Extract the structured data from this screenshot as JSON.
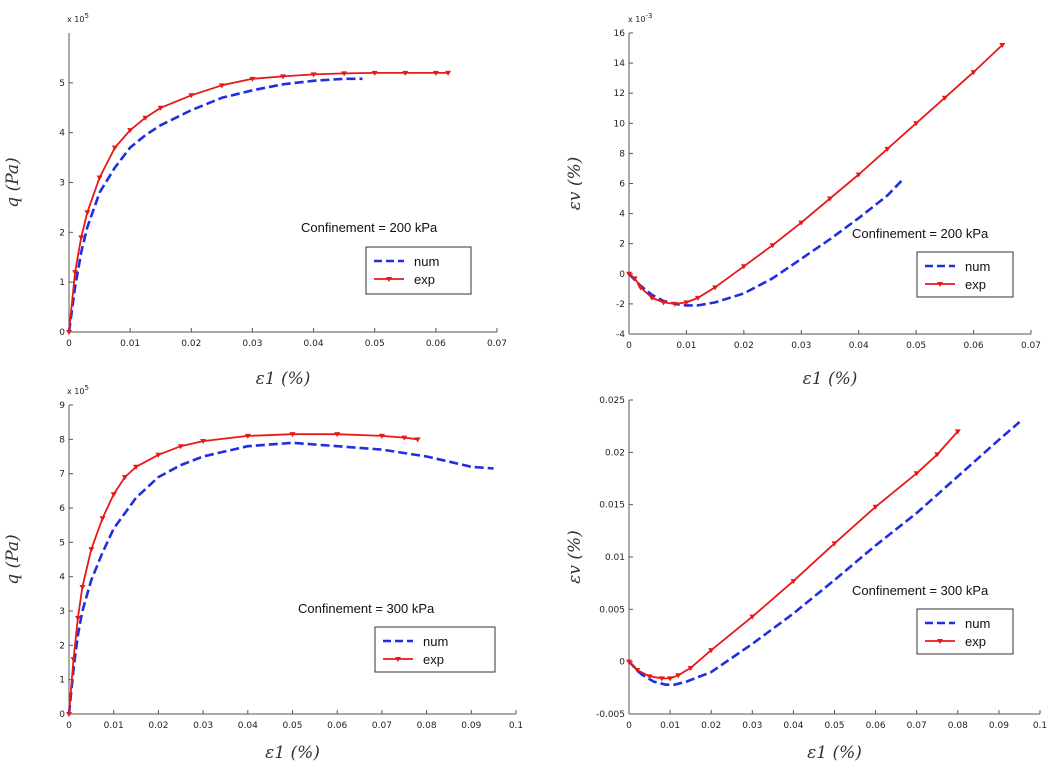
{
  "chart_data": [
    {
      "type": "line",
      "id": "p1",
      "xlabel": "ε1 (%)",
      "ylabel": "q (Pa)",
      "y_multiplier": "x 10^5",
      "xlim": [
        0,
        0.07
      ],
      "ylim": [
        0,
        6
      ],
      "xticks": [
        "0",
        "0.01",
        "0.02",
        "0.03",
        "0.04",
        "0.05",
        "0.06",
        "0.07"
      ],
      "yticks": [
        "0",
        "1",
        "2",
        "3",
        "4",
        "5"
      ],
      "annotation": "Confinement = 200 kPa",
      "legend": {
        "position": "right",
        "entries": [
          "num",
          "exp"
        ]
      },
      "series": [
        {
          "name": "num",
          "color": "#1f2fe0",
          "style": "dashed",
          "x": [
            0,
            0.001,
            0.002,
            0.003,
            0.005,
            0.0075,
            0.01,
            0.0125,
            0.015,
            0.02,
            0.025,
            0.03,
            0.035,
            0.04,
            0.045,
            0.048
          ],
          "y": [
            0,
            0.9,
            1.6,
            2.1,
            2.8,
            3.3,
            3.7,
            3.95,
            4.15,
            4.45,
            4.7,
            4.85,
            4.97,
            5.04,
            5.08,
            5.08
          ]
        },
        {
          "name": "exp",
          "color": "#e81818",
          "style": "marker",
          "x": [
            0,
            0.001,
            0.002,
            0.003,
            0.005,
            0.0075,
            0.01,
            0.0125,
            0.015,
            0.02,
            0.025,
            0.03,
            0.035,
            0.04,
            0.045,
            0.05,
            0.055,
            0.06,
            0.062
          ],
          "y": [
            0,
            1.2,
            1.9,
            2.4,
            3.1,
            3.7,
            4.05,
            4.3,
            4.5,
            4.75,
            4.95,
            5.08,
            5.13,
            5.17,
            5.19,
            5.2,
            5.2,
            5.2,
            5.2
          ]
        }
      ]
    },
    {
      "type": "line",
      "id": "p2",
      "xlabel": "ε1 (%)",
      "ylabel": "εv (%)",
      "y_multiplier": "x 10^-3",
      "xlim": [
        0,
        0.07
      ],
      "ylim": [
        -4,
        16
      ],
      "xticks": [
        "0",
        "0.01",
        "0.02",
        "0.03",
        "0.04",
        "0.05",
        "0.06",
        "0.07"
      ],
      "yticks": [
        "-4",
        "-2",
        "0",
        "2",
        "4",
        "6",
        "8",
        "10",
        "12",
        "14",
        "16"
      ],
      "annotation": "Confinement = 200 kPa",
      "legend": {
        "position": "right",
        "entries": [
          "num",
          "exp"
        ]
      },
      "series": [
        {
          "name": "num",
          "color": "#1f2fe0",
          "style": "dashed",
          "x": [
            0,
            0.002,
            0.004,
            0.006,
            0.008,
            0.01,
            0.012,
            0.015,
            0.02,
            0.025,
            0.03,
            0.035,
            0.04,
            0.045,
            0.0475
          ],
          "y": [
            0,
            -0.8,
            -1.4,
            -1.8,
            -2.0,
            -2.1,
            -2.1,
            -1.9,
            -1.3,
            -0.3,
            1.0,
            2.3,
            3.7,
            5.2,
            6.2
          ]
        },
        {
          "name": "exp",
          "color": "#e81818",
          "style": "marker",
          "x": [
            0,
            0.001,
            0.002,
            0.004,
            0.006,
            0.008,
            0.01,
            0.012,
            0.015,
            0.02,
            0.025,
            0.03,
            0.035,
            0.04,
            0.045,
            0.05,
            0.055,
            0.06,
            0.065
          ],
          "y": [
            0,
            -0.3,
            -0.9,
            -1.6,
            -1.9,
            -2.0,
            -1.9,
            -1.6,
            -0.9,
            0.5,
            1.9,
            3.4,
            5.0,
            6.6,
            8.3,
            10.0,
            11.7,
            13.4,
            15.2
          ]
        }
      ]
    },
    {
      "type": "line",
      "id": "p3",
      "xlabel": "ε1 (%)",
      "ylabel": "q (Pa)",
      "y_multiplier": "x 10^5",
      "xlim": [
        0,
        0.1
      ],
      "ylim": [
        0,
        9
      ],
      "xticks": [
        "0",
        "0.01",
        "0.02",
        "0.03",
        "0.04",
        "0.05",
        "0.06",
        "0.07",
        "0.08",
        "0.09",
        "0.1"
      ],
      "yticks": [
        "0",
        "1",
        "2",
        "3",
        "4",
        "5",
        "6",
        "7",
        "8",
        "9"
      ],
      "annotation": "Confinement = 300 kPa",
      "legend": {
        "position": "right",
        "entries": [
          "num",
          "exp"
        ]
      },
      "series": [
        {
          "name": "num",
          "color": "#1f2fe0",
          "style": "dashed",
          "x": [
            0,
            0.001,
            0.002,
            0.003,
            0.005,
            0.0075,
            0.01,
            0.015,
            0.02,
            0.025,
            0.03,
            0.04,
            0.05,
            0.06,
            0.07,
            0.08,
            0.085,
            0.09,
            0.095
          ],
          "y": [
            0,
            1.3,
            2.3,
            3.0,
            3.9,
            4.7,
            5.4,
            6.3,
            6.9,
            7.25,
            7.5,
            7.8,
            7.9,
            7.8,
            7.7,
            7.5,
            7.35,
            7.2,
            7.15
          ]
        },
        {
          "name": "exp",
          "color": "#e81818",
          "style": "marker",
          "x": [
            0,
            0.001,
            0.002,
            0.003,
            0.005,
            0.0075,
            0.01,
            0.0125,
            0.015,
            0.02,
            0.025,
            0.03,
            0.04,
            0.05,
            0.06,
            0.07,
            0.075,
            0.078
          ],
          "y": [
            0,
            1.6,
            2.8,
            3.7,
            4.8,
            5.7,
            6.4,
            6.9,
            7.2,
            7.55,
            7.8,
            7.95,
            8.1,
            8.15,
            8.15,
            8.1,
            8.05,
            8.0
          ]
        }
      ]
    },
    {
      "type": "line",
      "id": "p4",
      "xlabel": "ε1 (%)",
      "ylabel": "εv (%)",
      "xlim": [
        0,
        0.1
      ],
      "ylim": [
        -0.005,
        0.025
      ],
      "xticks": [
        "0",
        "0.01",
        "0.02",
        "0.03",
        "0.04",
        "0.05",
        "0.06",
        "0.07",
        "0.08",
        "0.09",
        "0.1"
      ],
      "yticks": [
        "-0.005",
        "0",
        "0.005",
        "0.01",
        "0.015",
        "0.02",
        "0.025"
      ],
      "annotation": "Confinement = 300 kPa",
      "legend": {
        "position": "right",
        "entries": [
          "num",
          "exp"
        ]
      },
      "series": [
        {
          "name": "num",
          "color": "#1f2fe0",
          "style": "dashed",
          "x": [
            0,
            0.003,
            0.006,
            0.009,
            0.011,
            0.014,
            0.02,
            0.03,
            0.04,
            0.05,
            0.06,
            0.07,
            0.08,
            0.09,
            0.095
          ],
          "y": [
            0,
            -0.0012,
            -0.0019,
            -0.0022,
            -0.0022,
            -0.0019,
            -0.001,
            0.0017,
            0.0046,
            0.0078,
            0.0111,
            0.0142,
            0.0177,
            0.0212,
            0.0229
          ]
        },
        {
          "name": "exp",
          "color": "#e81818",
          "style": "marker",
          "x": [
            0,
            0.002,
            0.005,
            0.008,
            0.01,
            0.012,
            0.015,
            0.02,
            0.03,
            0.04,
            0.05,
            0.06,
            0.07,
            0.075,
            0.08
          ],
          "y": [
            0,
            -0.0008,
            -0.0014,
            -0.0016,
            -0.0016,
            -0.0013,
            -0.0006,
            0.0011,
            0.0043,
            0.0077,
            0.0113,
            0.0148,
            0.018,
            0.0198,
            0.022
          ]
        }
      ]
    }
  ]
}
